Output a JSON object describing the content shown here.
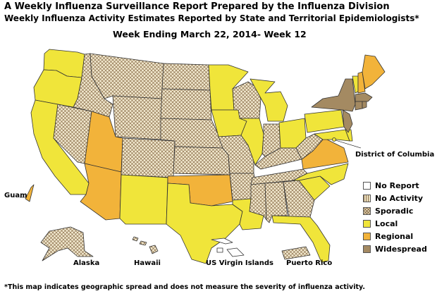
{
  "header": {
    "title_line1": "A Weekly Influenza Surveillance Report Prepared by the Influenza Division",
    "title_line2": "Weekly Influenza Activity Estimates Reported by State and Territorial Epidemiologists*",
    "week_line": "Week Ending March 22, 2014- Week 12"
  },
  "colors": {
    "no_report": "#ffffff",
    "no_activity": "#efe4c4",
    "sporadic": "#efe4c4",
    "local": "#f0e53a",
    "regional": "#f2b33a",
    "widespread": "#a48a62"
  },
  "legend": [
    {
      "key": "no_report",
      "label": "No Report"
    },
    {
      "key": "no_activity",
      "label": "No Activity"
    },
    {
      "key": "sporadic",
      "label": "Sporadic"
    },
    {
      "key": "local",
      "label": "Local"
    },
    {
      "key": "regional",
      "label": "Regional"
    },
    {
      "key": "widespread",
      "label": "Widespread"
    }
  ],
  "labels": {
    "dc": "District of Columbia",
    "guam": "Guam",
    "alaska": "Alaska",
    "hawaii": "Hawaii",
    "usvi": "US Virgin Islands",
    "pr": "Puerto Rico"
  },
  "footnote": "*This map indicates geographic spread and does not measure the severity of influenza activity.",
  "states": {
    "WA": "local",
    "OR": "local",
    "CA": "local",
    "NV": "sporadic",
    "ID": "sporadic",
    "MT": "sporadic",
    "WY": "sporadic",
    "UT": "regional",
    "AZ": "regional",
    "CO": "sporadic",
    "NM": "local",
    "ND": "sporadic",
    "SD": "sporadic",
    "NE": "sporadic",
    "KS": "sporadic",
    "OK": "regional",
    "TX": "local",
    "MN": "local",
    "IA": "local",
    "MO": "sporadic",
    "AR": "sporadic",
    "LA": "local",
    "WI": "sporadic",
    "IL": "local",
    "MI": "local",
    "IN": "sporadic",
    "OH": "local",
    "KY": "sporadic",
    "TN": "sporadic",
    "MS": "sporadic",
    "AL": "sporadic",
    "GA": "sporadic",
    "FL": "local",
    "SC": "local",
    "NC": "local",
    "VA": "regional",
    "WV": "sporadic",
    "PA": "local",
    "NY": "widespread",
    "VT": "local",
    "NH": "regional",
    "ME": "regional",
    "MA": "widespread",
    "RI": "widespread",
    "CT": "widespread",
    "NJ": "widespread",
    "DE": "local",
    "MD": "local",
    "DC": "local",
    "AK": "sporadic",
    "HI": "sporadic",
    "GU": "regional",
    "PR": "sporadic",
    "VI": "no_report"
  }
}
